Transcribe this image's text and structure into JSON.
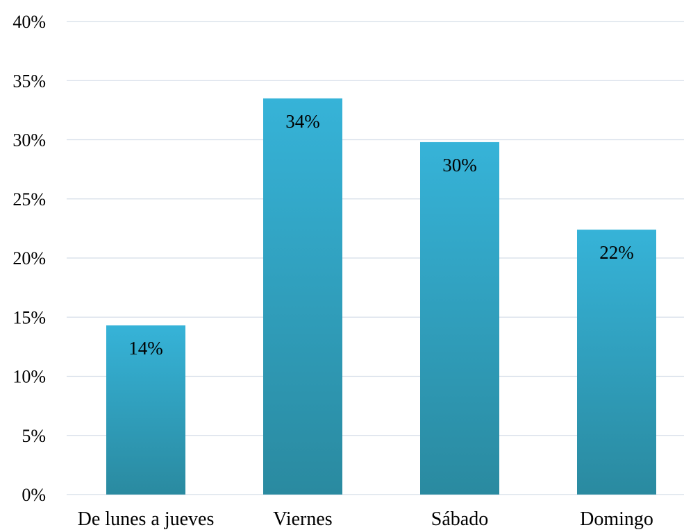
{
  "chart_data": {
    "type": "bar",
    "categories": [
      "De lunes a jueves",
      "Viernes",
      "Sábado",
      "Domingo"
    ],
    "values": [
      14.3,
      33.5,
      29.8,
      22.4
    ],
    "data_labels": [
      "14%",
      "34%",
      "30%",
      "22%"
    ],
    "title": "",
    "xlabel": "",
    "ylabel": "",
    "ylim": [
      0,
      40
    ],
    "y_ticks": [
      0,
      5,
      10,
      15,
      20,
      25,
      30,
      35,
      40
    ],
    "y_tick_labels": [
      "0%",
      "5%",
      "10%",
      "15%",
      "20%",
      "25%",
      "30%",
      "35%",
      "40%"
    ],
    "grid": true,
    "legend": "none",
    "colors": {
      "bar_top": "#36b3d8",
      "bar_bottom": "#2a8aa0",
      "grid": "#d4dde8"
    }
  }
}
